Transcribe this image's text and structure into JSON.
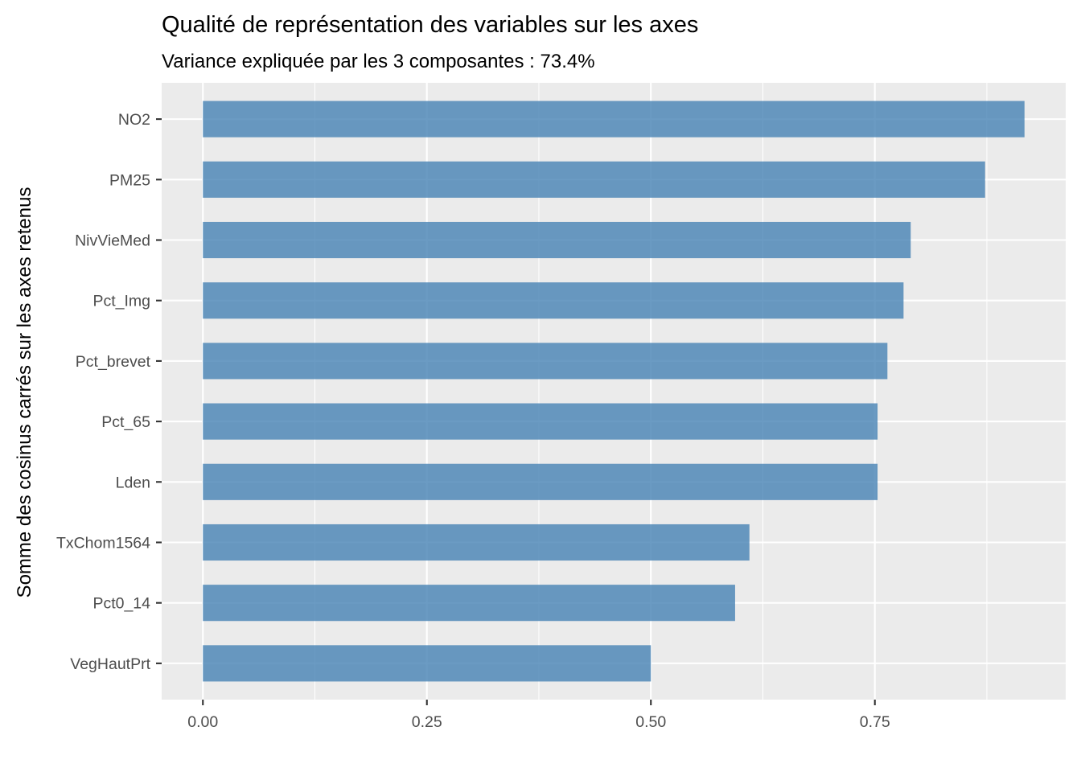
{
  "chart_data": {
    "type": "bar",
    "orientation": "horizontal",
    "title": "Qualité de représentation des variables sur les axes",
    "subtitle": "Variance expliquée par les 3 composantes : 73.4%",
    "xlabel": "",
    "ylabel": "Somme des cosinus carrés sur les axes retenus",
    "categories": [
      "NO2",
      "PM25",
      "NivVieMed",
      "Pct_Img",
      "Pct_brevet",
      "Pct_65",
      "Lden",
      "TxChom1564",
      "Pct0_14",
      "VegHautPrt"
    ],
    "values": [
      0.917,
      0.873,
      0.79,
      0.782,
      0.764,
      0.753,
      0.753,
      0.61,
      0.594,
      0.5
    ],
    "xlim": [
      -0.046,
      0.963
    ],
    "xticks": [
      0.0,
      0.25,
      0.5,
      0.75
    ],
    "xtick_labels": [
      "0.00",
      "0.25",
      "0.50",
      "0.75"
    ],
    "bar_color": "#4682b4",
    "bar_opacity": 0.8,
    "panel_background": "#ebebeb",
    "grid": true,
    "legend": "none"
  }
}
